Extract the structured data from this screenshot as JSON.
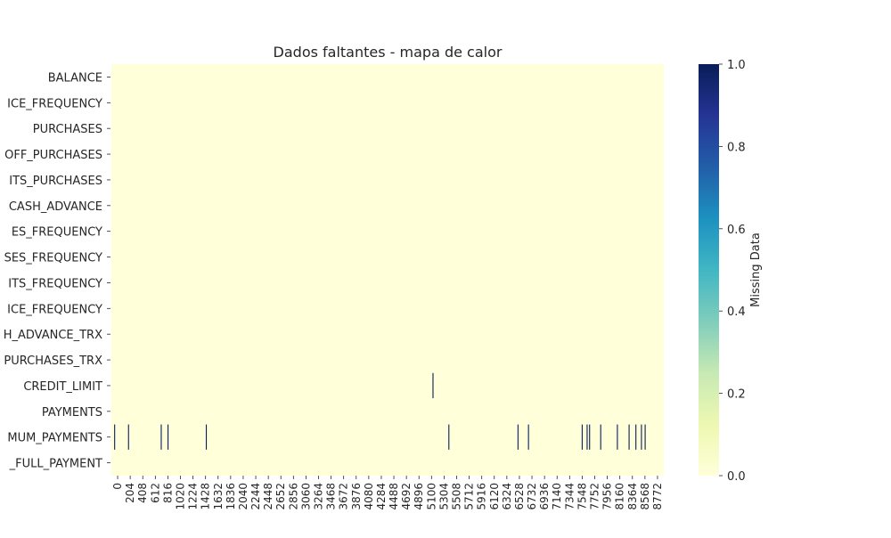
{
  "chart_data": {
    "type": "heatmap",
    "title": "Dados faltantes - mapa de calor",
    "rows": [
      "BALANCE",
      "BALANCE_FREQUENCY",
      "PURCHASES",
      "ONEOFF_PURCHASES",
      "INSTALLMENTS_PURCHASES",
      "CASH_ADVANCE",
      "PURCHASES_FREQUENCY",
      "ONEOFF_PURCHASES_FREQUENCY",
      "PURCHASES_INSTALLMENTS_FREQUENCY",
      "CASH_ADVANCE_FREQUENCY",
      "CASH_ADVANCE_TRX",
      "PURCHASES_TRX",
      "CREDIT_LIMIT",
      "PAYMENTS",
      "MINIMUM_PAYMENTS",
      "PRC_FULL_PAYMENT"
    ],
    "row_labels_visible": [
      "BALANCE",
      "ICE_FREQUENCY",
      "PURCHASES",
      "OFF_PURCHASES",
      "ITS_PURCHASES",
      "CASH_ADVANCE",
      "ES_FREQUENCY",
      "SES_FREQUENCY",
      "ITS_FREQUENCY",
      "ICE_FREQUENCY",
      "H_ADVANCE_TRX",
      "PURCHASES_TRX",
      "CREDIT_LIMIT",
      "PAYMENTS",
      "MUM_PAYMENTS",
      "_FULL_PAYMENT"
    ],
    "x_ticks": [
      "0",
      "204",
      "408",
      "612",
      "816",
      "1020",
      "1224",
      "1428",
      "1632",
      "1836",
      "2040",
      "2244",
      "2448",
      "2652",
      "2856",
      "3060",
      "3264",
      "3468",
      "3672",
      "3876",
      "4080",
      "4284",
      "4488",
      "4692",
      "4896",
      "5100",
      "5304",
      "5508",
      "5712",
      "5916",
      "6120",
      "6324",
      "6528",
      "6732",
      "6936",
      "7140",
      "7344",
      "7548",
      "7752",
      "7956",
      "8160",
      "8364",
      "8568",
      "8772"
    ],
    "n_records": 8950,
    "missing": {
      "CREDIT_LIMIT": [
        5203
      ],
      "MINIMUM_PAYMENTS": [
        45,
        270,
        800,
        910,
        1530,
        5460,
        6580,
        6750,
        7620,
        7700,
        7740,
        7920,
        8190,
        8380,
        8490,
        8580,
        8640
      ]
    },
    "colorbar": {
      "label": "Missing Data",
      "min": 0.0,
      "max": 1.0,
      "ticks": [
        "0.0",
        "0.2",
        "0.4",
        "0.6",
        "0.8",
        "1.0"
      ],
      "cmap": "YlGnBu",
      "color_low": "#ffffd9",
      "color_high": "#081d58"
    },
    "grid": false
  }
}
